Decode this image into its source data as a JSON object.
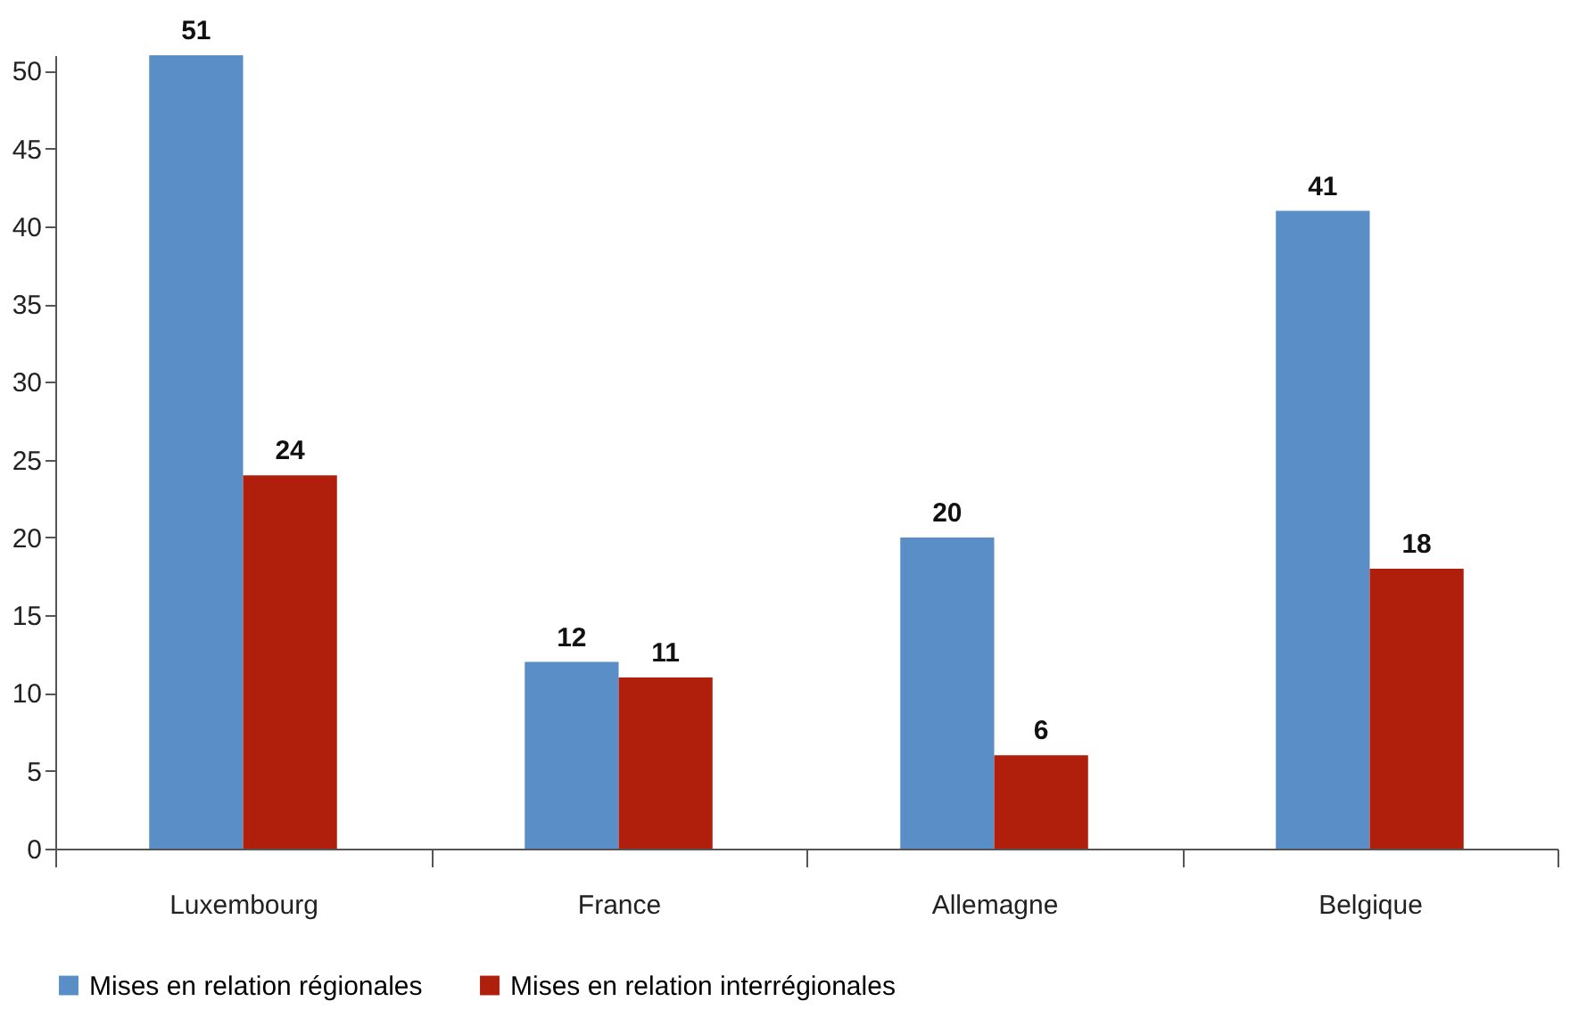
{
  "chart_data": {
    "type": "bar",
    "categories": [
      "Luxembourg",
      "France",
      "Allemagne",
      "Belgique"
    ],
    "series": [
      {
        "name": "Mises en relation régionales",
        "color": "#5a8ec6",
        "values": [
          51,
          12,
          20,
          41
        ]
      },
      {
        "name": "Mises en relation interrégionales",
        "color": "#b01e0c",
        "values": [
          24,
          11,
          6,
          18
        ]
      }
    ],
    "ylim": [
      0,
      51
    ],
    "yticks": [
      0,
      5,
      10,
      15,
      20,
      25,
      30,
      35,
      40,
      45,
      50
    ],
    "grid": false,
    "legend": "bottom",
    "data_labels": true
  }
}
